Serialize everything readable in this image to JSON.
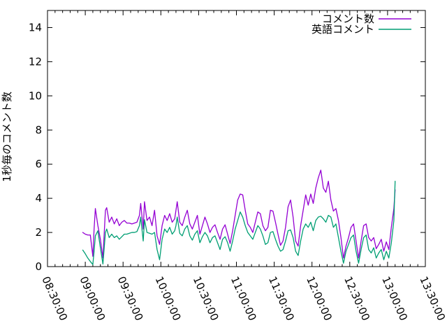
{
  "chart_data": {
    "type": "line",
    "title": "",
    "xlabel": "",
    "ylabel": "1秒毎のコメント数",
    "grid": false,
    "legend_position": "top-right-inside",
    "axis_color": "#000000",
    "x_axis": {
      "tick_labels": [
        "08:30:00",
        "09:00:00",
        "09:30:00",
        "10:00:00",
        "10:30:00",
        "11:00:00",
        "11:30:00",
        "12:00:00",
        "12:30:00",
        "13:00:00",
        "13:30:00"
      ],
      "major_tick_interval_minutes": 30,
      "minor_tick_interval_minutes": 6,
      "range_minutes": 300,
      "label_rotation_deg": 66
    },
    "y_axis": {
      "min": 0,
      "max": 15,
      "tick_labels": [
        "0",
        "2",
        "4",
        "6",
        "8",
        "10",
        "12",
        "14"
      ],
      "tick_values": [
        0,
        2,
        4,
        6,
        8,
        10,
        12,
        14
      ]
    },
    "x_times": [
      "08:58",
      "09:00",
      "09:02",
      "09:04",
      "09:06",
      "09:07",
      "09:08",
      "09:10",
      "09:12",
      "09:14",
      "09:16",
      "09:17",
      "09:19",
      "09:21",
      "09:23",
      "09:25",
      "09:27",
      "09:29",
      "09:31",
      "09:33",
      "09:35",
      "09:37",
      "09:39",
      "09:41",
      "09:43",
      "09:44",
      "09:46",
      "09:47",
      "09:49",
      "09:51",
      "09:53",
      "09:55",
      "09:57",
      "09:59",
      "10:01",
      "10:03",
      "10:05",
      "10:07",
      "10:09",
      "10:11",
      "10:12",
      "10:13",
      "10:15",
      "10:17",
      "10:19",
      "10:21",
      "10:23",
      "10:25",
      "10:27",
      "10:29",
      "10:31",
      "10:33",
      "10:35",
      "10:37",
      "10:39",
      "10:41",
      "10:43",
      "10:45",
      "10:47",
      "10:49",
      "10:51",
      "10:53",
      "10:55",
      "10:57",
      "10:59",
      "11:01",
      "11:03",
      "11:05",
      "11:07",
      "11:09",
      "11:11",
      "11:13",
      "11:15",
      "11:17",
      "11:19",
      "11:21",
      "11:23",
      "11:25",
      "11:27",
      "11:29",
      "11:31",
      "11:33",
      "11:35",
      "11:37",
      "11:39",
      "11:41",
      "11:43",
      "11:45",
      "11:47",
      "11:49",
      "11:51",
      "11:53",
      "11:55",
      "11:57",
      "11:59",
      "12:01",
      "12:03",
      "12:05",
      "12:07",
      "12:09",
      "12:11",
      "12:13",
      "12:15",
      "12:17",
      "12:19",
      "12:21",
      "12:23",
      "12:25",
      "12:27",
      "12:29",
      "12:31",
      "12:33",
      "12:35",
      "12:37",
      "12:39",
      "12:41",
      "12:43",
      "12:45",
      "12:47",
      "12:49",
      "12:51",
      "12:53",
      "12:55",
      "12:57",
      "12:59",
      "13:01",
      "13:03",
      "13:05",
      "13:06"
    ],
    "series": [
      {
        "id": "comments",
        "name": "コメント数",
        "color": "#9400d3",
        "values": [
          2.0,
          1.9,
          1.85,
          1.85,
          0.6,
          2.2,
          3.4,
          2.4,
          1.6,
          0.5,
          3.3,
          3.45,
          2.6,
          2.9,
          2.5,
          2.8,
          2.4,
          2.6,
          2.7,
          2.55,
          2.55,
          2.5,
          2.55,
          2.6,
          3.0,
          3.7,
          2.2,
          3.8,
          2.7,
          2.9,
          2.4,
          3.3,
          1.8,
          1.3,
          2.4,
          3.0,
          2.7,
          3.1,
          2.6,
          2.8,
          3.3,
          3.8,
          2.6,
          2.4,
          2.9,
          3.3,
          2.5,
          2.2,
          2.6,
          3.0,
          1.9,
          2.4,
          2.9,
          2.5,
          2.0,
          2.3,
          2.45,
          2.0,
          1.6,
          2.2,
          2.45,
          1.9,
          1.35,
          2.1,
          3.0,
          3.9,
          4.25,
          4.2,
          3.3,
          2.5,
          2.3,
          2.0,
          2.6,
          3.2,
          3.1,
          2.4,
          2.1,
          2.3,
          3.3,
          3.25,
          2.6,
          1.9,
          1.25,
          1.5,
          2.3,
          3.5,
          3.9,
          2.9,
          1.5,
          1.2,
          2.4,
          3.3,
          4.2,
          3.6,
          4.25,
          3.7,
          4.6,
          5.2,
          5.65,
          4.6,
          4.35,
          5.0,
          3.9,
          3.25,
          3.4,
          2.7,
          1.7,
          0.5,
          1.2,
          1.7,
          2.3,
          2.5,
          1.5,
          0.5,
          1.5,
          2.4,
          2.5,
          1.7,
          1.5,
          1.7,
          1.05,
          1.3,
          1.6,
          0.9,
          1.45,
          1.0,
          2.3,
          3.4,
          4.5
        ]
      },
      {
        "id": "english-comments",
        "name": "英語コメント",
        "color": "#009e73",
        "values": [
          0.97,
          0.75,
          0.5,
          0.3,
          0.12,
          0.9,
          1.8,
          2.1,
          1.1,
          0.15,
          2.0,
          2.2,
          1.7,
          1.9,
          1.7,
          1.8,
          1.6,
          1.75,
          1.9,
          1.9,
          1.95,
          2.0,
          2.0,
          2.05,
          2.4,
          2.9,
          1.5,
          2.75,
          2.0,
          1.95,
          1.9,
          2.0,
          1.0,
          0.4,
          1.6,
          2.2,
          2.0,
          2.3,
          1.9,
          2.1,
          2.4,
          2.9,
          1.95,
          1.8,
          2.2,
          2.4,
          1.8,
          1.55,
          1.9,
          2.1,
          1.4,
          1.75,
          2.0,
          1.8,
          1.4,
          1.7,
          1.8,
          1.4,
          1.0,
          1.6,
          1.75,
          1.4,
          0.9,
          1.5,
          2.2,
          2.7,
          3.2,
          2.9,
          2.4,
          2.0,
          1.8,
          1.6,
          2.0,
          2.4,
          2.2,
          1.8,
          1.3,
          1.4,
          2.0,
          2.05,
          1.6,
          1.2,
          0.9,
          1.0,
          1.5,
          2.1,
          2.15,
          1.7,
          0.9,
          0.65,
          1.5,
          2.2,
          2.5,
          2.3,
          2.6,
          2.1,
          2.7,
          2.9,
          2.95,
          2.8,
          2.6,
          3.0,
          2.9,
          2.3,
          2.5,
          1.7,
          0.9,
          0.2,
          0.9,
          1.3,
          1.7,
          1.85,
          0.9,
          0.2,
          1.0,
          1.7,
          1.85,
          1.0,
          0.8,
          1.1,
          0.5,
          0.8,
          1.0,
          0.4,
          0.9,
          0.5,
          1.4,
          2.7,
          5.0
        ]
      }
    ]
  }
}
